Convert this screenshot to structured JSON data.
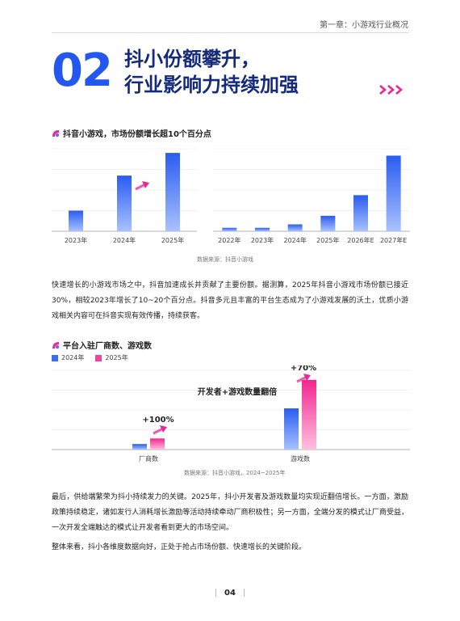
{
  "header": {
    "running_title": "第一章：小游戏行业概况"
  },
  "chapter": {
    "number": "02",
    "title_line1": "抖小份额攀升，",
    "title_line2": "行业影响力持续加强"
  },
  "section1": {
    "title": "抖音小游戏，市场份额增长超10个百分点"
  },
  "section2": {
    "title": "平台入驻厂商数、游戏数"
  },
  "colors": {
    "blue_accent": "#2357f0",
    "navy_title": "#142a7a",
    "pink_accent": "#e8279a",
    "bar_blue": "#3c6ff0",
    "bar_pink": "#f0449a"
  },
  "chart_data": [
    {
      "type": "bar",
      "title": "",
      "categories": [
        "2023年",
        "2024年",
        "2025年"
      ],
      "values": [
        10,
        27,
        38
      ],
      "ylim": [
        0,
        40
      ],
      "grid": true
    },
    {
      "type": "bar",
      "title": "",
      "categories": [
        "2022年",
        "2023年",
        "2024年",
        "2025年",
        "2026年E",
        "2027年E"
      ],
      "values": [
        2,
        2,
        4,
        9,
        21,
        44
      ],
      "ylim": [
        0,
        48
      ],
      "grid": true
    },
    {
      "type": "bar",
      "title": "",
      "categories": [
        "厂商数",
        "游戏数"
      ],
      "series": [
        {
          "name": "2024年",
          "values": [
            7,
            52
          ]
        },
        {
          "name": "2025年",
          "values": [
            14,
            88
          ]
        }
      ],
      "ylim": [
        0,
        100
      ],
      "grid": true,
      "annotations": [
        "+100%",
        "+70%",
        "开发者+游戏数量翻倍"
      ]
    }
  ],
  "source1": "数据来源：抖音小游戏",
  "source2": "数据来源：抖音小游戏，2024~2025年",
  "paragraph1": "快速增长的小游戏市场之中，抖音加速成长并贡献了主要份额。据测算，2025年抖音小游戏市场份额已接近30%，相较2023年增长了10~20个百分点。抖音多元且丰富的平台生态成为了小游戏发展的沃土，优质小游戏相关内容可在抖音实现有效传播，持续获客。",
  "paragraph2": "最后，供给端繁荣为抖小持续发力的关键。2025年，抖小开发者及游戏数量均实现近翻倍增长。一方面，激励政策持续稳定，诸如发行人消耗增长激励等活动持续牵动厂商积极性；另一方面，全端分发的模式让厂商受益，一次开发全端触达的模式让开发者看到更大的市场空间。",
  "paragraph3": "整体来看，抖小各维度数据向好，正处于抢占市场份额、快速增长的关键阶段。",
  "legend": {
    "a": "2024年",
    "b": "2025年"
  },
  "footer": {
    "page": "04"
  }
}
